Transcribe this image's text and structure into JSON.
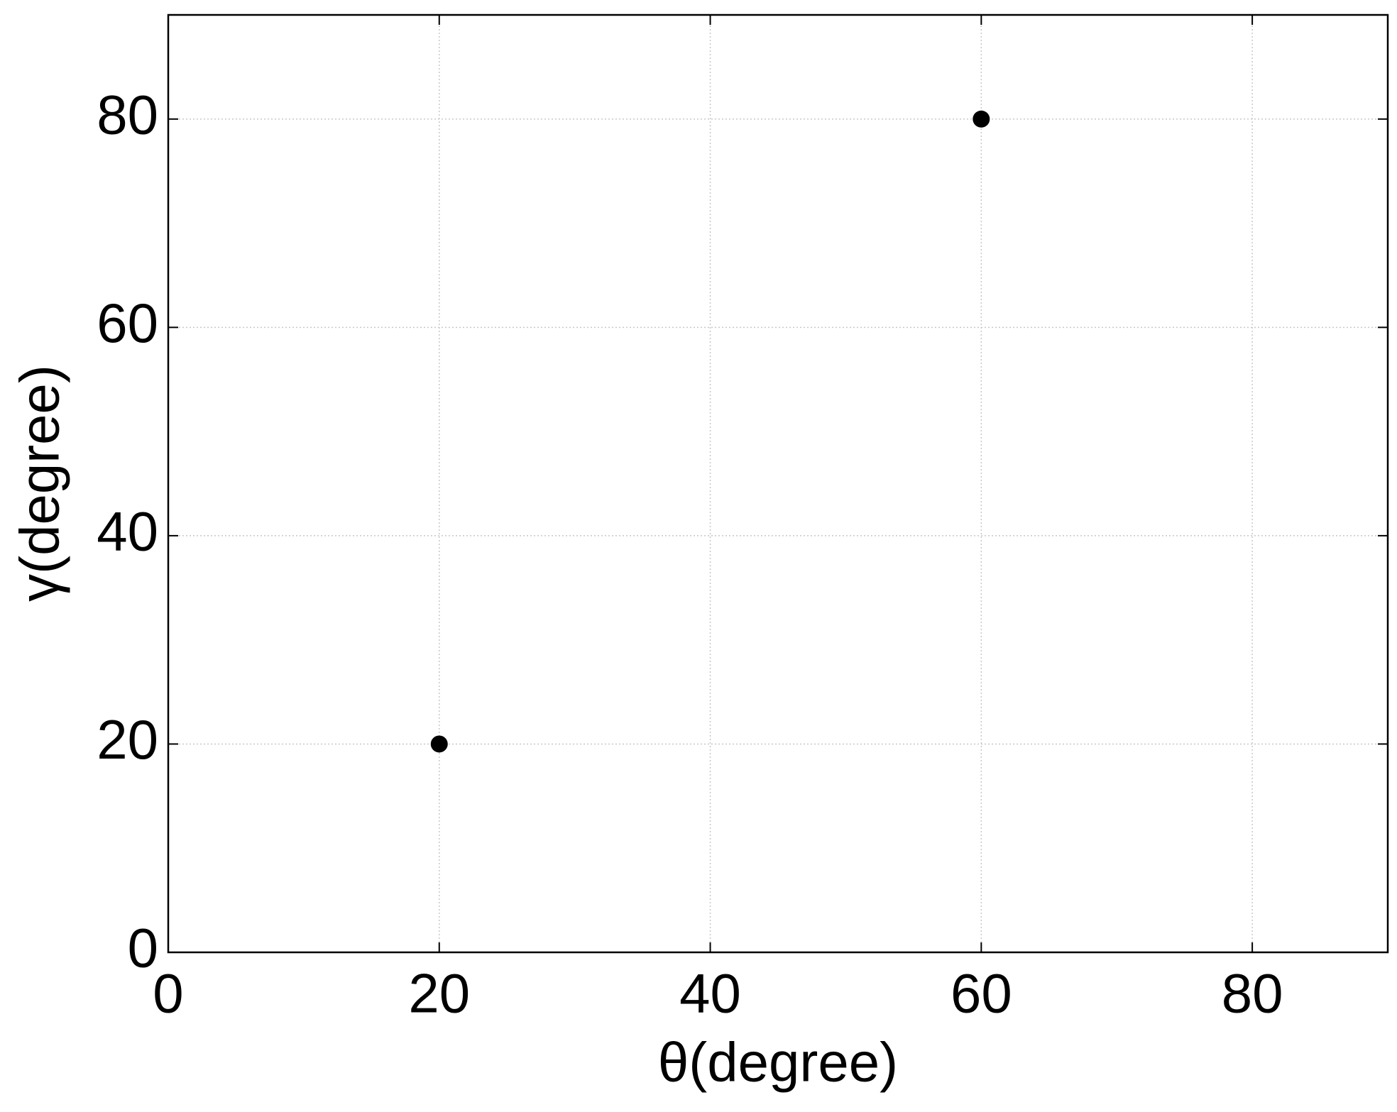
{
  "chart_data": {
    "type": "scatter",
    "x_label": "θ(degree)",
    "y_label": "γ(degree)",
    "series": [
      {
        "x": [
          20,
          60
        ],
        "values": [
          20,
          80
        ],
        "color": "#000000"
      }
    ],
    "xlim": [
      0,
      90
    ],
    "ylim": [
      0,
      90
    ],
    "xticks": [
      0,
      20,
      40,
      60,
      80
    ],
    "yticks": [
      0,
      20,
      40,
      60,
      80
    ],
    "grid": true
  }
}
